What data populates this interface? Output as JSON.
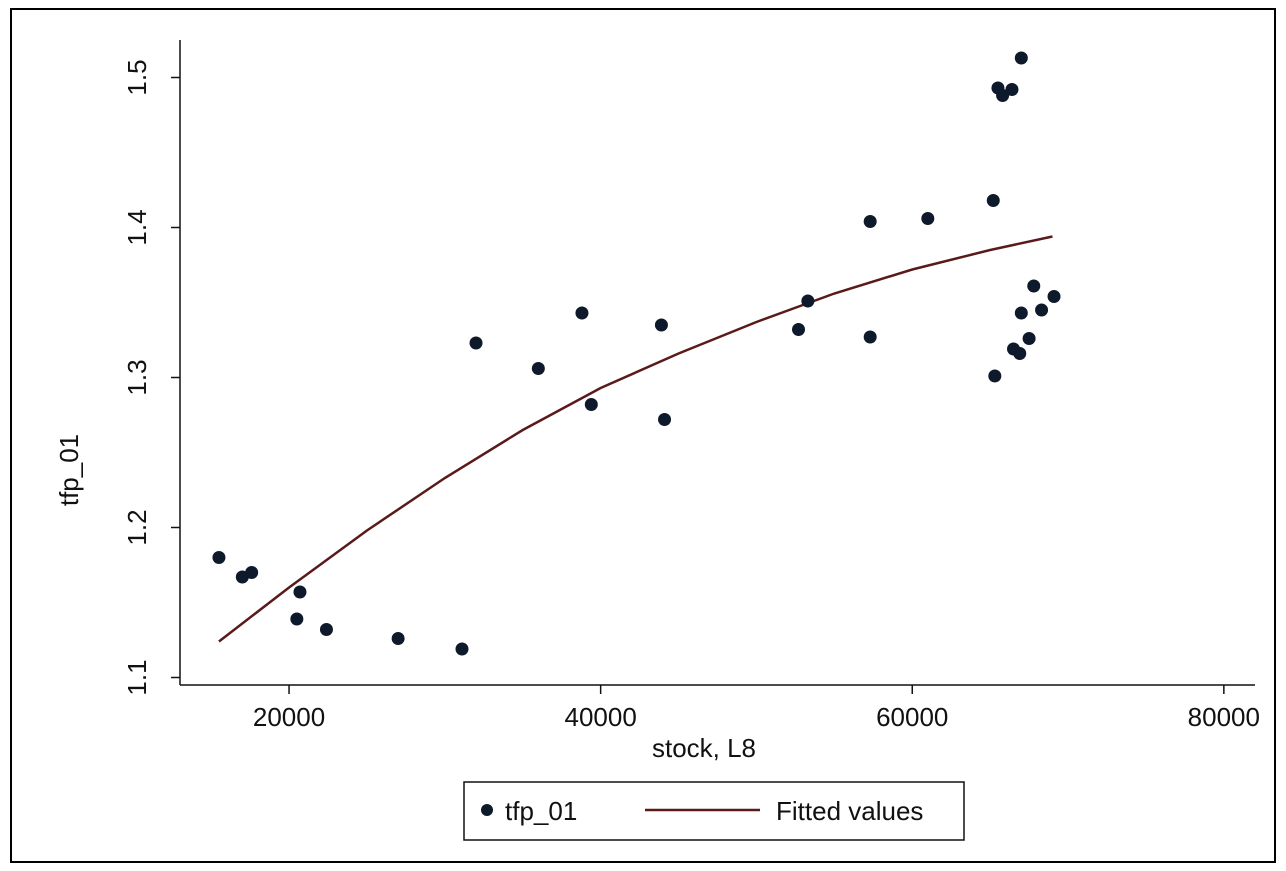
{
  "chart_data": {
    "type": "scatter",
    "xlabel": "stock, L8",
    "ylabel": "tfp_01",
    "xlim": [
      13000,
      82000
    ],
    "ylim": [
      1.095,
      1.525
    ],
    "xticks": [
      20000,
      40000,
      60000,
      80000
    ],
    "yticks": [
      1.1,
      1.2,
      1.3,
      1.4,
      1.5
    ],
    "xtick_labels": [
      "20000",
      "40000",
      "60000",
      "80000"
    ],
    "ytick_labels": [
      "1.1",
      "1.2",
      "1.3",
      "1.4",
      "1.5"
    ],
    "grid": false,
    "legend_position": "bottom",
    "colors": {
      "points": "#0e1a2b",
      "fitted": "#5a1a1a"
    },
    "series": [
      {
        "name": "tfp_01",
        "type": "scatter",
        "points": [
          [
            15500,
            1.18
          ],
          [
            17000,
            1.167
          ],
          [
            17600,
            1.17
          ],
          [
            20500,
            1.139
          ],
          [
            20700,
            1.157
          ],
          [
            22400,
            1.132
          ],
          [
            27000,
            1.126
          ],
          [
            31100,
            1.119
          ],
          [
            32000,
            1.323
          ],
          [
            36000,
            1.306
          ],
          [
            38800,
            1.343
          ],
          [
            39400,
            1.282
          ],
          [
            43900,
            1.335
          ],
          [
            44100,
            1.272
          ],
          [
            52700,
            1.332
          ],
          [
            53300,
            1.351
          ],
          [
            57300,
            1.404
          ],
          [
            57300,
            1.327
          ],
          [
            61000,
            1.406
          ],
          [
            65200,
            1.418
          ],
          [
            65300,
            1.301
          ],
          [
            65500,
            1.493
          ],
          [
            65800,
            1.488
          ],
          [
            66400,
            1.492
          ],
          [
            66500,
            1.319
          ],
          [
            66900,
            1.316
          ],
          [
            67000,
            1.513
          ],
          [
            67000,
            1.343
          ],
          [
            67500,
            1.326
          ],
          [
            67800,
            1.361
          ],
          [
            68300,
            1.345
          ],
          [
            69100,
            1.354
          ]
        ]
      },
      {
        "name": "Fitted values",
        "type": "line",
        "points": [
          [
            15500,
            1.124
          ],
          [
            20000,
            1.16
          ],
          [
            25000,
            1.198
          ],
          [
            30000,
            1.233
          ],
          [
            35000,
            1.265
          ],
          [
            40000,
            1.293
          ],
          [
            45000,
            1.316
          ],
          [
            50000,
            1.337
          ],
          [
            55000,
            1.356
          ],
          [
            60000,
            1.372
          ],
          [
            65000,
            1.385
          ],
          [
            69000,
            1.394
          ]
        ]
      }
    ]
  }
}
